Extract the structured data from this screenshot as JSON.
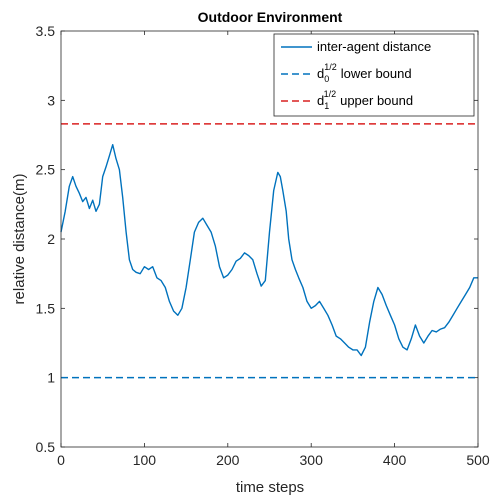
{
  "chart_data": {
    "type": "line",
    "title": "Outdoor Environment",
    "xlabel": "time steps",
    "ylabel": "relative distance(m)",
    "xlim": [
      0,
      500
    ],
    "ylim": [
      0.5,
      3.5
    ],
    "xticks": [
      "0",
      "100",
      "200",
      "300",
      "400",
      "500"
    ],
    "yticks": [
      "0.5",
      "1",
      "1.5",
      "2",
      "2.5",
      "3",
      "3.5"
    ],
    "grid": false,
    "legend_position": "top-right",
    "colors": {
      "distance": "#0072BD",
      "lower": "#0072BD",
      "upper": "#D92020",
      "axis": "#262626"
    },
    "series": [
      {
        "name": "inter-agent distance",
        "style": "solid",
        "x": [
          0,
          5,
          10,
          14,
          18,
          22,
          26,
          30,
          34,
          38,
          42,
          46,
          50,
          54,
          58,
          62,
          66,
          70,
          74,
          78,
          82,
          86,
          90,
          95,
          100,
          105,
          110,
          115,
          120,
          125,
          130,
          135,
          140,
          145,
          150,
          155,
          160,
          165,
          170,
          175,
          180,
          185,
          190,
          195,
          200,
          205,
          210,
          215,
          220,
          225,
          230,
          235,
          240,
          245,
          250,
          255,
          260,
          263,
          266,
          270,
          273,
          277,
          281,
          285,
          290,
          295,
          300,
          305,
          310,
          315,
          320,
          325,
          330,
          335,
          340,
          345,
          350,
          355,
          360,
          365,
          370,
          375,
          380,
          385,
          390,
          395,
          400,
          405,
          410,
          415,
          420,
          425,
          430,
          435,
          440,
          445,
          450,
          455,
          460,
          465,
          470,
          475,
          480,
          485,
          490,
          495,
          500
        ],
        "y": [
          2.05,
          2.2,
          2.38,
          2.45,
          2.38,
          2.33,
          2.27,
          2.3,
          2.22,
          2.28,
          2.2,
          2.25,
          2.45,
          2.52,
          2.6,
          2.68,
          2.58,
          2.5,
          2.3,
          2.05,
          1.85,
          1.78,
          1.76,
          1.75,
          1.8,
          1.78,
          1.8,
          1.72,
          1.7,
          1.65,
          1.55,
          1.48,
          1.45,
          1.5,
          1.65,
          1.85,
          2.05,
          2.12,
          2.15,
          2.1,
          2.05,
          1.95,
          1.8,
          1.72,
          1.74,
          1.78,
          1.84,
          1.86,
          1.9,
          1.88,
          1.85,
          1.75,
          1.66,
          1.7,
          2.05,
          2.35,
          2.48,
          2.45,
          2.35,
          2.2,
          2.0,
          1.85,
          1.78,
          1.72,
          1.65,
          1.55,
          1.5,
          1.52,
          1.55,
          1.5,
          1.45,
          1.38,
          1.3,
          1.28,
          1.25,
          1.22,
          1.2,
          1.2,
          1.16,
          1.22,
          1.4,
          1.55,
          1.65,
          1.6,
          1.52,
          1.45,
          1.38,
          1.28,
          1.22,
          1.2,
          1.28,
          1.38,
          1.3,
          1.25,
          1.3,
          1.34,
          1.33,
          1.35,
          1.36,
          1.4,
          1.45,
          1.5,
          1.55,
          1.6,
          1.65,
          1.72,
          1.72
        ]
      },
      {
        "name": "lower bound",
        "style": "dashed",
        "y": 1.0,
        "legend_base": "d",
        "legend_sub": "0",
        "legend_sup": "1/2"
      },
      {
        "name": "upper bound",
        "style": "dashed",
        "y": 2.83,
        "legend_base": "d",
        "legend_sub": "1",
        "legend_sup": "1/2"
      }
    ]
  }
}
